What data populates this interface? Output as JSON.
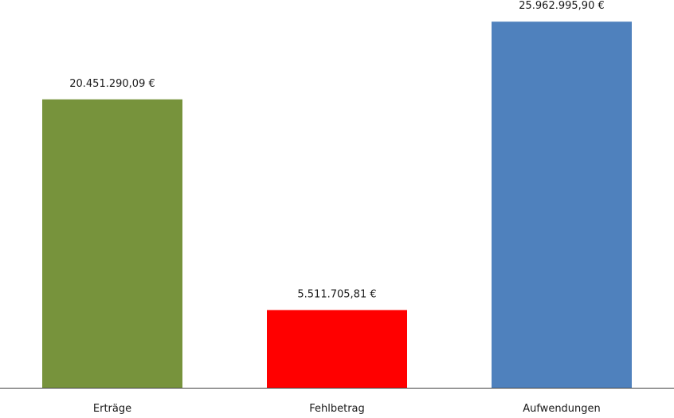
{
  "chart_data": {
    "type": "bar",
    "categories": [
      "Erträge",
      "Fehlbetrag",
      "Aufwendungen"
    ],
    "values": [
      20451290.09,
      5511705.81,
      25962995.9
    ],
    "value_labels": [
      "20.451.290,09 €",
      "5.511.705,81 €",
      "25.962.995,90 €"
    ],
    "colors": [
      "#77933c",
      "#ff0000",
      "#4f81bd"
    ],
    "axis_color": "#404040",
    "title": "",
    "xlabel": "",
    "ylabel": "",
    "ylim": [
      0,
      27500000
    ],
    "grid": false,
    "legend": "none"
  }
}
